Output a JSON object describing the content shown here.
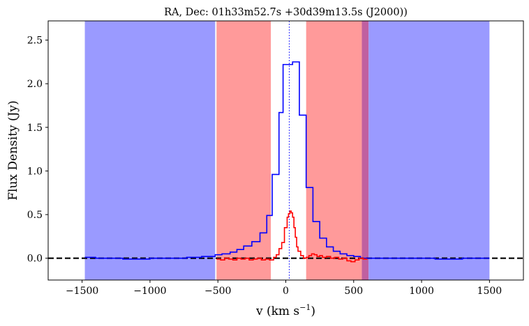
{
  "chart_data": {
    "type": "line",
    "title": "RA, Dec: 01h33m52.7s +30d39m13.5s (J2000))",
    "xlabel": "v (km s",
    "xlabel_sup": "−1",
    "xlabel_suffix": ")",
    "ylabel": "Flux Density (Jy)",
    "xlim": [
      -1750,
      1750
    ],
    "ylim": [
      -0.25,
      2.72
    ],
    "xticks": [
      -1500,
      -1000,
      -500,
      0,
      500,
      1000,
      1500
    ],
    "xtick_labels": [
      "−1500",
      "−1000",
      "−500",
      "0",
      "500",
      "1000",
      "1500"
    ],
    "yticks": [
      0.0,
      0.5,
      1.0,
      1.5,
      2.0,
      2.5
    ],
    "ytick_labels": [
      "0.0",
      "0.5",
      "1.0",
      "1.5",
      "2.0",
      "2.5"
    ],
    "grid": false,
    "colors": {
      "blue_band": "#9a9aff",
      "red_band": "#ff9a9a",
      "overlap_band": "#c060a0",
      "blue_series": "#0000ff",
      "red_series": "#ff0000",
      "zero_line": "#000000",
      "center_line": "#0000ff"
    },
    "shaded_regions": [
      {
        "color": "blue",
        "x0": -1480,
        "x1": -520
      },
      {
        "color": "red",
        "x0": -510,
        "x1": -110
      },
      {
        "color": "red",
        "x0": 150,
        "x1": 560
      },
      {
        "color": "overlap",
        "x0": 560,
        "x1": 610
      },
      {
        "color": "blue",
        "x0": 610,
        "x1": 1500
      }
    ],
    "center_line_x": 25,
    "zero_line_y": 0.0,
    "series": [
      {
        "color": "blue",
        "step_edges": [
          -1480,
          -1400,
          -1300,
          -1200,
          -1100,
          -1000,
          -900,
          -800,
          -730,
          -620,
          -520,
          -470,
          -410,
          -360,
          -310,
          -250,
          -190,
          -140,
          -100,
          -50,
          -20,
          50,
          100,
          150,
          200,
          250,
          300,
          350,
          400,
          450,
          500,
          550,
          600,
          700,
          800,
          900,
          1000,
          1100,
          1200,
          1300,
          1400,
          1500
        ],
        "values": [
          0.01,
          0.0,
          0.0,
          -0.01,
          -0.01,
          0.0,
          0.0,
          0.0,
          0.01,
          0.02,
          0.04,
          0.05,
          0.07,
          0.1,
          0.14,
          0.19,
          0.29,
          0.49,
          0.96,
          1.67,
          2.22,
          2.25,
          1.64,
          0.81,
          0.42,
          0.23,
          0.13,
          0.08,
          0.05,
          0.03,
          0.02,
          0.0,
          0.0,
          0.0,
          0.0,
          0.0,
          0.0,
          -0.01,
          -0.01,
          0.0,
          0.0
        ]
      },
      {
        "color": "red",
        "step_edges": [
          -510,
          -480,
          -450,
          -420,
          -390,
          -360,
          -330,
          -300,
          -270,
          -240,
          -210,
          -180,
          -150,
          -120,
          -90,
          -70,
          -50,
          -30,
          -10,
          10,
          20,
          30,
          40,
          50,
          60,
          70,
          80,
          90,
          110,
          130,
          150,
          170,
          190,
          210,
          230,
          250,
          270,
          300,
          330,
          360,
          390,
          420,
          450,
          480,
          510,
          540,
          570,
          600
        ],
        "values": [
          -0.01,
          -0.02,
          0.0,
          -0.01,
          -0.02,
          0.0,
          -0.01,
          0.0,
          -0.02,
          -0.01,
          0.0,
          -0.02,
          -0.01,
          -0.02,
          0.01,
          0.04,
          0.11,
          0.18,
          0.35,
          0.47,
          0.51,
          0.54,
          0.52,
          0.47,
          0.35,
          0.24,
          0.13,
          0.08,
          0.03,
          0.0,
          0.01,
          0.03,
          0.05,
          0.04,
          0.02,
          0.03,
          0.01,
          0.02,
          0.0,
          0.01,
          -0.01,
          0.0,
          -0.03,
          -0.04,
          -0.02,
          0.0,
          -0.01
        ]
      }
    ]
  }
}
